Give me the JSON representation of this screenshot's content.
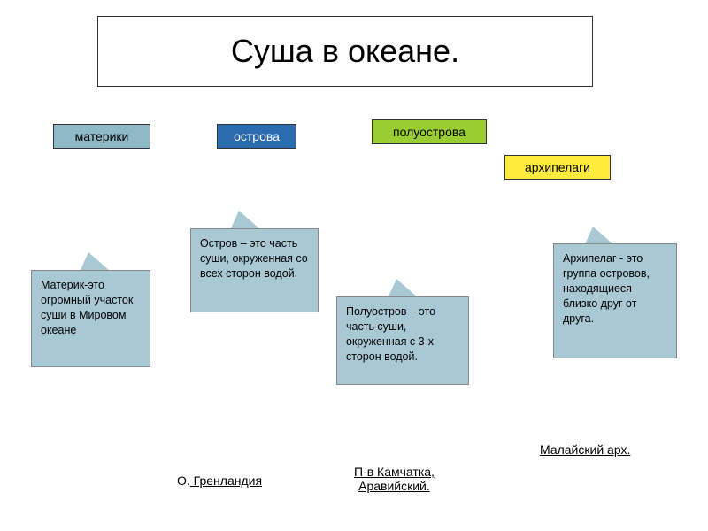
{
  "title": "Суша в океане.",
  "categories": {
    "mainland": {
      "label": "материки",
      "bg": "#8eb9c7"
    },
    "island": {
      "label": "острова",
      "bg": "#2b6cb0"
    },
    "peninsula": {
      "label": "полуострова",
      "bg": "#9acd32"
    },
    "archipelago": {
      "label": "архипелаги",
      "bg": "#ffeb3b"
    }
  },
  "definitions": {
    "mainland": "Материк-это огромный участок суши в Мировом океане",
    "island": "Остров – это часть суши, окруженная со всех сторон водой.",
    "peninsula": "Полуостров – это часть суши, окруженная с 3-х сторон водой.",
    "archipelago": "Архипелаг - это группа островов, находящиеся близко друг от друга."
  },
  "examples": {
    "greenland_prefix": "О.",
    "greenland": "  Гренландия",
    "kamchatka_prefix": "П-в",
    "kamchatka": " Камчатка,",
    "arabian": "Аравийский.",
    "malay_prefix": "Малайский",
    "malay": " арх."
  },
  "colors": {
    "def_bg": "#a8c8d4",
    "border": "#333333",
    "background": "#ffffff"
  },
  "typography": {
    "title_fontsize": 36,
    "category_fontsize": 14,
    "definition_fontsize": 12.5,
    "example_fontsize": 14
  }
}
